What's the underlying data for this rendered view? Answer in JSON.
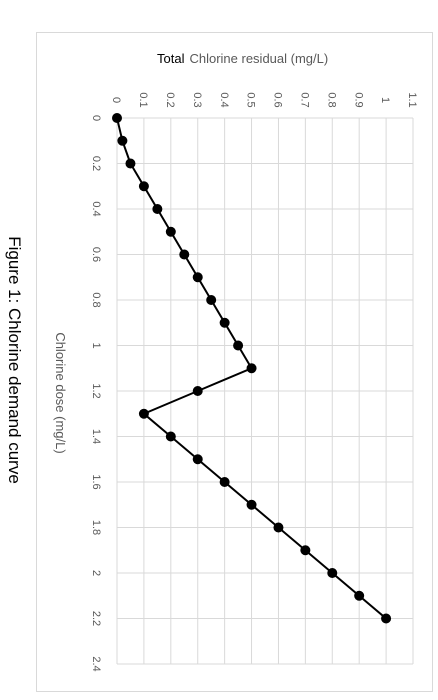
{
  "figure": {
    "caption": "Figure 1: Chlorine demand curve"
  },
  "chart_data": {
    "type": "line",
    "title": "",
    "xlabel": "Chlorine dose (mg/L)",
    "ylabel_prefix": "Total",
    "ylabel": "Chlorine residual (mg/L)",
    "xlim": [
      0,
      2.4
    ],
    "ylim": [
      0,
      1.1
    ],
    "x_ticks": [
      "0",
      "0.2",
      "0.4",
      "0.6",
      "0.8",
      "1",
      "1.2",
      "1.4",
      "1.6",
      "1.8",
      "2",
      "2.2",
      "2.4"
    ],
    "y_ticks": [
      "0",
      "0.1",
      "0.2",
      "0.3",
      "0.4",
      "0.5",
      "0.6",
      "0.7",
      "0.8",
      "0.9",
      "1",
      "1.1"
    ],
    "grid": true,
    "orientation": "rotated 90 degrees clockwise",
    "series": [
      {
        "x": [
          0,
          0.1,
          0.2,
          0.3,
          0.4,
          0.5,
          0.6,
          0.7,
          0.8,
          0.9,
          1.0,
          1.1,
          1.2,
          1.3,
          1.4,
          1.5,
          1.6,
          1.7,
          1.8,
          1.9,
          2.0,
          2.1,
          2.2
        ],
        "y": [
          0,
          0.02,
          0.05,
          0.1,
          0.15,
          0.2,
          0.25,
          0.3,
          0.35,
          0.4,
          0.45,
          0.5,
          0.3,
          0.1,
          0.2,
          0.3,
          0.4,
          0.5,
          0.6,
          0.7,
          0.8,
          0.9,
          1.0
        ],
        "color": "#000000"
      }
    ]
  }
}
